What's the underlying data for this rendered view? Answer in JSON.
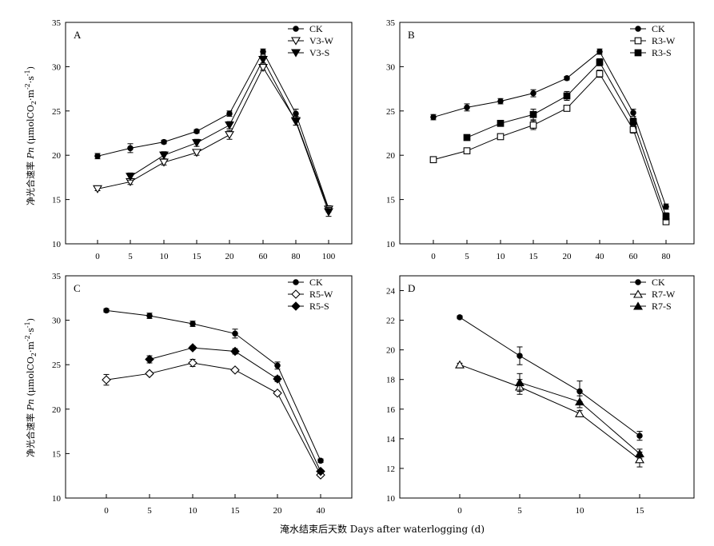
{
  "figure": {
    "ylabel_cn": "净光合速率 ",
    "ylabel_pn": "Pn",
    "ylabel_unit_pre": " (μmolCO",
    "ylabel_sub": "2",
    "ylabel_unit_mid": "·m",
    "ylabel_sup1": "-2",
    "ylabel_unit_mid2": "·s",
    "ylabel_sup2": "-1",
    "ylabel_close": ")",
    "xlabel": "淹水结束后天数 Days after waterlogging (d)"
  },
  "chart_data": [
    {
      "type": "line",
      "panel_label": "A",
      "categories": [
        "0",
        "5",
        "10",
        "15",
        "20",
        "60",
        "80",
        "100"
      ],
      "ylim": [
        10,
        35
      ],
      "yticks": [
        10,
        15,
        20,
        25,
        30,
        35
      ],
      "legend_position": "top-right",
      "series": [
        {
          "name": "CK",
          "marker": "circle",
          "filled": true,
          "values": [
            19.9,
            20.8,
            21.5,
            22.7,
            24.7,
            31.7,
            24.7,
            14.0
          ],
          "errors": [
            0.3,
            0.5,
            0.2,
            0.2,
            0.3,
            0.3,
            0.5,
            0.3
          ]
        },
        {
          "name": "V3-W",
          "marker": "triangle-down",
          "filled": false,
          "values": [
            16.2,
            17.0,
            19.2,
            20.3,
            22.3,
            29.9,
            23.9,
            13.9
          ],
          "errors": [
            0.2,
            0.3,
            0.3,
            0.3,
            0.5,
            0.3,
            0.5,
            0.3
          ]
        },
        {
          "name": "V3-S",
          "marker": "triangle-down",
          "filled": true,
          "values": [
            null,
            17.6,
            20.0,
            21.4,
            23.4,
            30.8,
            23.8,
            13.6
          ],
          "errors": [
            null,
            0.4,
            0.4,
            0.4,
            0.4,
            0.4,
            0.4,
            0.5
          ]
        }
      ]
    },
    {
      "type": "line",
      "panel_label": "B",
      "categories": [
        "0",
        "5",
        "10",
        "15",
        "20",
        "40",
        "60",
        "80"
      ],
      "ylim": [
        10,
        35
      ],
      "yticks": [
        10,
        15,
        20,
        25,
        30,
        35
      ],
      "legend_position": "top-right",
      "series": [
        {
          "name": "CK",
          "marker": "circle",
          "filled": true,
          "values": [
            24.3,
            25.4,
            26.1,
            27.0,
            28.7,
            31.7,
            24.8,
            14.2
          ],
          "errors": [
            0.3,
            0.4,
            0.3,
            0.4,
            0.2,
            0.3,
            0.4,
            0.3
          ]
        },
        {
          "name": "R3-W",
          "marker": "square",
          "filled": false,
          "values": [
            19.5,
            20.5,
            22.1,
            23.4,
            25.3,
            29.2,
            22.9,
            12.5
          ],
          "errors": [
            0.1,
            0.3,
            0.2,
            0.5,
            0.3,
            0.4,
            0.4,
            0.3
          ]
        },
        {
          "name": "R3-S",
          "marker": "square",
          "filled": true,
          "values": [
            null,
            22.0,
            23.6,
            24.6,
            26.7,
            30.5,
            23.8,
            13.1
          ],
          "errors": [
            null,
            0.2,
            0.2,
            0.6,
            0.5,
            0.4,
            0.4,
            0.4
          ]
        }
      ]
    },
    {
      "type": "line",
      "panel_label": "C",
      "categories": [
        "0",
        "5",
        "10",
        "15",
        "20",
        "40"
      ],
      "ylim": [
        10,
        35
      ],
      "yticks": [
        10,
        15,
        20,
        25,
        30,
        35
      ],
      "legend_position": "top-right",
      "series": [
        {
          "name": "CK",
          "marker": "circle",
          "filled": true,
          "values": [
            31.1,
            30.5,
            29.6,
            28.5,
            24.9,
            14.2
          ],
          "errors": [
            0.2,
            0.3,
            0.3,
            0.5,
            0.4,
            0.2
          ]
        },
        {
          "name": "R5-W",
          "marker": "diamond",
          "filled": false,
          "values": [
            23.3,
            24.0,
            25.2,
            24.4,
            21.8,
            12.6
          ],
          "errors": [
            0.6,
            0.2,
            0.4,
            0.2,
            0.2,
            0.2
          ]
        },
        {
          "name": "R5-S",
          "marker": "diamond",
          "filled": true,
          "values": [
            null,
            25.6,
            26.9,
            26.5,
            23.4,
            13.0
          ],
          "errors": [
            null,
            0.4,
            0.2,
            0.3,
            0.3,
            0.2
          ]
        }
      ]
    },
    {
      "type": "line",
      "panel_label": "D",
      "categories": [
        "0",
        "5",
        "10",
        "15"
      ],
      "ylim": [
        10,
        25
      ],
      "yticks": [
        10,
        12,
        14,
        16,
        18,
        20,
        22,
        24
      ],
      "legend_position": "top-right",
      "series": [
        {
          "name": "CK",
          "marker": "circle",
          "filled": true,
          "values": [
            22.2,
            19.6,
            17.2,
            14.2
          ],
          "errors": [
            0.1,
            0.6,
            0.7,
            0.3
          ]
        },
        {
          "name": "R7-W",
          "marker": "triangle-up",
          "filled": false,
          "values": [
            19.0,
            17.5,
            15.7,
            12.6
          ],
          "errors": [
            0.1,
            0.5,
            0.2,
            0.5
          ]
        },
        {
          "name": "R7-S",
          "marker": "triangle-up",
          "filled": true,
          "values": [
            null,
            17.8,
            16.5,
            13.0
          ],
          "errors": [
            null,
            0.6,
            0.4,
            0.3
          ]
        }
      ]
    }
  ]
}
